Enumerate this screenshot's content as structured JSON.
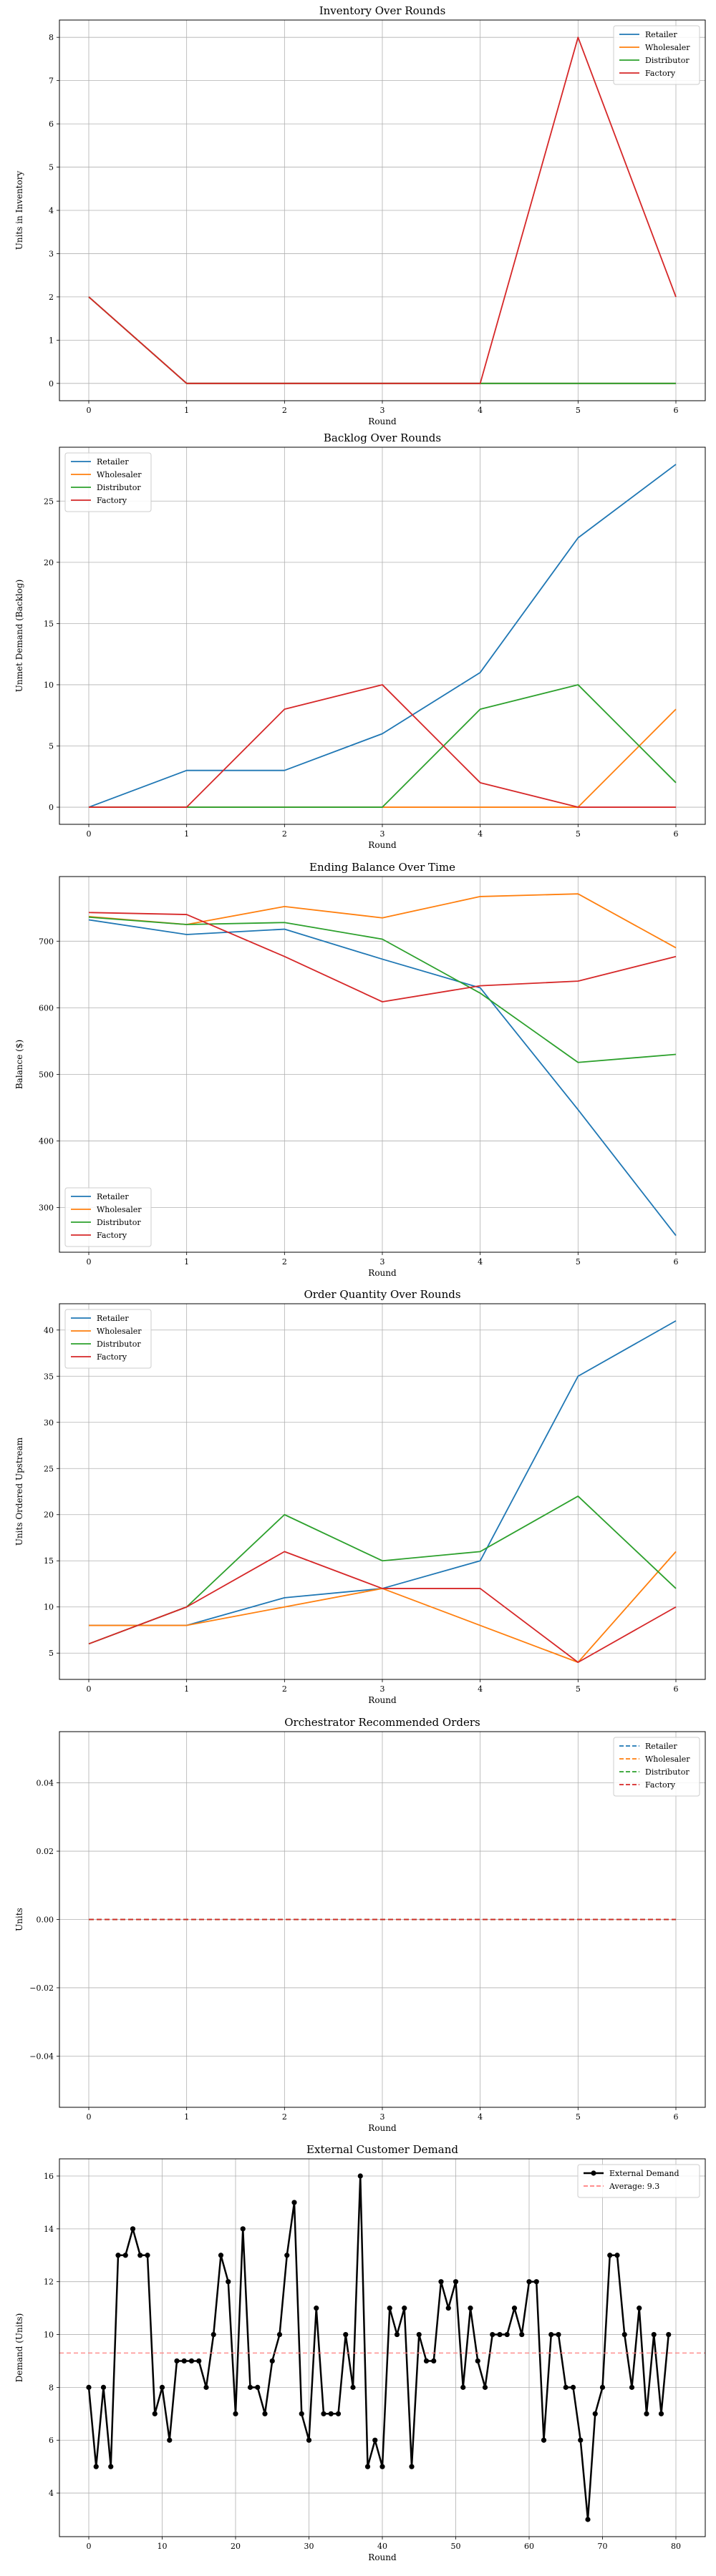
{
  "chart_data": [
    {
      "type": "line",
      "title": "Inventory Over Rounds",
      "xlabel": "Round",
      "ylabel": "Units in Inventory",
      "x": [
        0,
        1,
        2,
        3,
        4,
        5,
        6
      ],
      "xticks": [
        "0",
        "1",
        "2",
        "3",
        "4",
        "5",
        "6"
      ],
      "ylim": [
        -0.4,
        8.4
      ],
      "yticks": [
        "0",
        "1",
        "2",
        "3",
        "4",
        "5",
        "6",
        "7",
        "8"
      ],
      "grid": true,
      "legend": "top-right",
      "series": [
        {
          "name": "Retailer",
          "color": "#1f77b4",
          "values": [
            2,
            0,
            0,
            0,
            0,
            0,
            0
          ]
        },
        {
          "name": "Wholesaler",
          "color": "#ff7f0e",
          "values": [
            2,
            0,
            0,
            0,
            0,
            0,
            0
          ]
        },
        {
          "name": "Distributor",
          "color": "#2ca02c",
          "values": [
            2,
            0,
            0,
            0,
            0,
            0,
            0
          ]
        },
        {
          "name": "Factory",
          "color": "#d62728",
          "values": [
            2,
            0,
            0,
            0,
            0,
            8,
            2
          ]
        }
      ]
    },
    {
      "type": "line",
      "title": "Backlog Over Rounds",
      "xlabel": "Round",
      "ylabel": "Unmet Demand (Backlog)",
      "x": [
        0,
        1,
        2,
        3,
        4,
        5,
        6
      ],
      "xticks": [
        "0",
        "1",
        "2",
        "3",
        "4",
        "5",
        "6"
      ],
      "ylim": [
        -1.4,
        29.4
      ],
      "yticks": [
        "0",
        "5",
        "10",
        "15",
        "20",
        "25"
      ],
      "grid": true,
      "legend": "top-left",
      "series": [
        {
          "name": "Retailer",
          "color": "#1f77b4",
          "values": [
            0,
            3,
            3,
            6,
            11,
            22,
            28
          ]
        },
        {
          "name": "Wholesaler",
          "color": "#ff7f0e",
          "values": [
            0,
            0,
            0,
            0,
            0,
            0,
            8
          ]
        },
        {
          "name": "Distributor",
          "color": "#2ca02c",
          "values": [
            0,
            0,
            0,
            0,
            8,
            10,
            2
          ]
        },
        {
          "name": "Factory",
          "color": "#d62728",
          "values": [
            0,
            0,
            8,
            10,
            2,
            0,
            0
          ]
        }
      ]
    },
    {
      "type": "line",
      "title": "Ending Balance Over Time",
      "xlabel": "Round",
      "ylabel": "Balance ($)",
      "x": [
        0,
        1,
        2,
        3,
        4,
        5,
        6
      ],
      "xticks": [
        "0",
        "1",
        "2",
        "3",
        "4",
        "5",
        "6"
      ],
      "ylim": [
        233,
        797
      ],
      "yticks": [
        "300",
        "400",
        "500",
        "600",
        "700"
      ],
      "grid": true,
      "legend": "bottom-left",
      "series": [
        {
          "name": "Retailer",
          "color": "#1f77b4",
          "values": [
            732,
            710,
            718,
            673,
            630,
            447,
            258
          ]
        },
        {
          "name": "Wholesaler",
          "color": "#ff7f0e",
          "values": [
            737,
            725,
            752,
            735,
            767,
            771,
            690
          ]
        },
        {
          "name": "Distributor",
          "color": "#2ca02c",
          "values": [
            736,
            725,
            728,
            703,
            622,
            518,
            530
          ]
        },
        {
          "name": "Factory",
          "color": "#d62728",
          "values": [
            743,
            740,
            677,
            609,
            633,
            640,
            677
          ]
        }
      ]
    },
    {
      "type": "line",
      "title": "Order Quantity Over Rounds",
      "xlabel": "Round",
      "ylabel": "Units Ordered Upstream",
      "x": [
        0,
        1,
        2,
        3,
        4,
        5,
        6
      ],
      "xticks": [
        "0",
        "1",
        "2",
        "3",
        "4",
        "5",
        "6"
      ],
      "ylim": [
        2.15,
        42.85
      ],
      "yticks": [
        "5",
        "10",
        "15",
        "20",
        "25",
        "30",
        "35",
        "40"
      ],
      "grid": true,
      "legend": "top-left",
      "series": [
        {
          "name": "Retailer",
          "color": "#1f77b4",
          "values": [
            8,
            8,
            11,
            12,
            15,
            35,
            41
          ]
        },
        {
          "name": "Wholesaler",
          "color": "#ff7f0e",
          "values": [
            8,
            8,
            10,
            12,
            8,
            4,
            16
          ]
        },
        {
          "name": "Distributor",
          "color": "#2ca02c",
          "values": [
            6,
            10,
            20,
            15,
            16,
            22,
            12
          ]
        },
        {
          "name": "Factory",
          "color": "#d62728",
          "values": [
            6,
            10,
            16,
            12,
            12,
            4,
            10
          ]
        }
      ]
    },
    {
      "type": "line",
      "title": "Orchestrator Recommended Orders",
      "xlabel": "Round",
      "ylabel": "Units",
      "x": [
        0,
        1,
        2,
        3,
        4,
        5,
        6
      ],
      "xticks": [
        "0",
        "1",
        "2",
        "3",
        "4",
        "5",
        "6"
      ],
      "ylim": [
        -0.055,
        0.055
      ],
      "yticks": [
        "−0.04",
        "−0.02",
        "0.00",
        "0.02",
        "0.04"
      ],
      "ytick_values": [
        -0.04,
        -0.02,
        0,
        0.02,
        0.04
      ],
      "grid": true,
      "legend": "top-right",
      "line_style": "dashed",
      "series": [
        {
          "name": "Retailer",
          "color": "#1f77b4",
          "values": [
            0,
            0,
            0,
            0,
            0,
            0,
            0
          ]
        },
        {
          "name": "Wholesaler",
          "color": "#ff7f0e",
          "values": [
            0,
            0,
            0,
            0,
            0,
            0,
            0
          ]
        },
        {
          "name": "Distributor",
          "color": "#2ca02c",
          "values": [
            0,
            0,
            0,
            0,
            0,
            0,
            0
          ]
        },
        {
          "name": "Factory",
          "color": "#d62728",
          "values": [
            0,
            0,
            0,
            0,
            0,
            0,
            0
          ]
        }
      ]
    },
    {
      "type": "line",
      "title": "External Customer Demand",
      "xlabel": "Round",
      "ylabel": "Demand (Units)",
      "xlim": [
        -4,
        84
      ],
      "xticks": [
        "0",
        "10",
        "20",
        "30",
        "40",
        "50",
        "60",
        "70",
        "80"
      ],
      "xtick_values": [
        0,
        10,
        20,
        30,
        40,
        50,
        60,
        70,
        80
      ],
      "ylim": [
        2.35,
        16.65
      ],
      "yticks": [
        "4",
        "6",
        "8",
        "10",
        "12",
        "14",
        "16"
      ],
      "grid": true,
      "legend": "top-right",
      "series": [
        {
          "name": "External Demand",
          "color": "#000000",
          "marker": "circle",
          "values": [
            8,
            5,
            8,
            5,
            13,
            13,
            14,
            13,
            13,
            7,
            8,
            6,
            9,
            9,
            9,
            9,
            8,
            10,
            13,
            12,
            7,
            14,
            8,
            8,
            7,
            9,
            10,
            13,
            15,
            7,
            6,
            11,
            7,
            7,
            7,
            10,
            8,
            16,
            5,
            6,
            5,
            11,
            10,
            11,
            5,
            10,
            9,
            9,
            12,
            11,
            12,
            8,
            11,
            9,
            8,
            10,
            10,
            10,
            11,
            10,
            12,
            12,
            6,
            10,
            10,
            8,
            8,
            6,
            3,
            7,
            8,
            13,
            13,
            10,
            8,
            11,
            7,
            10,
            7,
            10
          ]
        },
        {
          "name": "Average: 9.3",
          "color": "#ff7f7f",
          "reference": true,
          "values": [
            9.3
          ]
        }
      ]
    }
  ]
}
